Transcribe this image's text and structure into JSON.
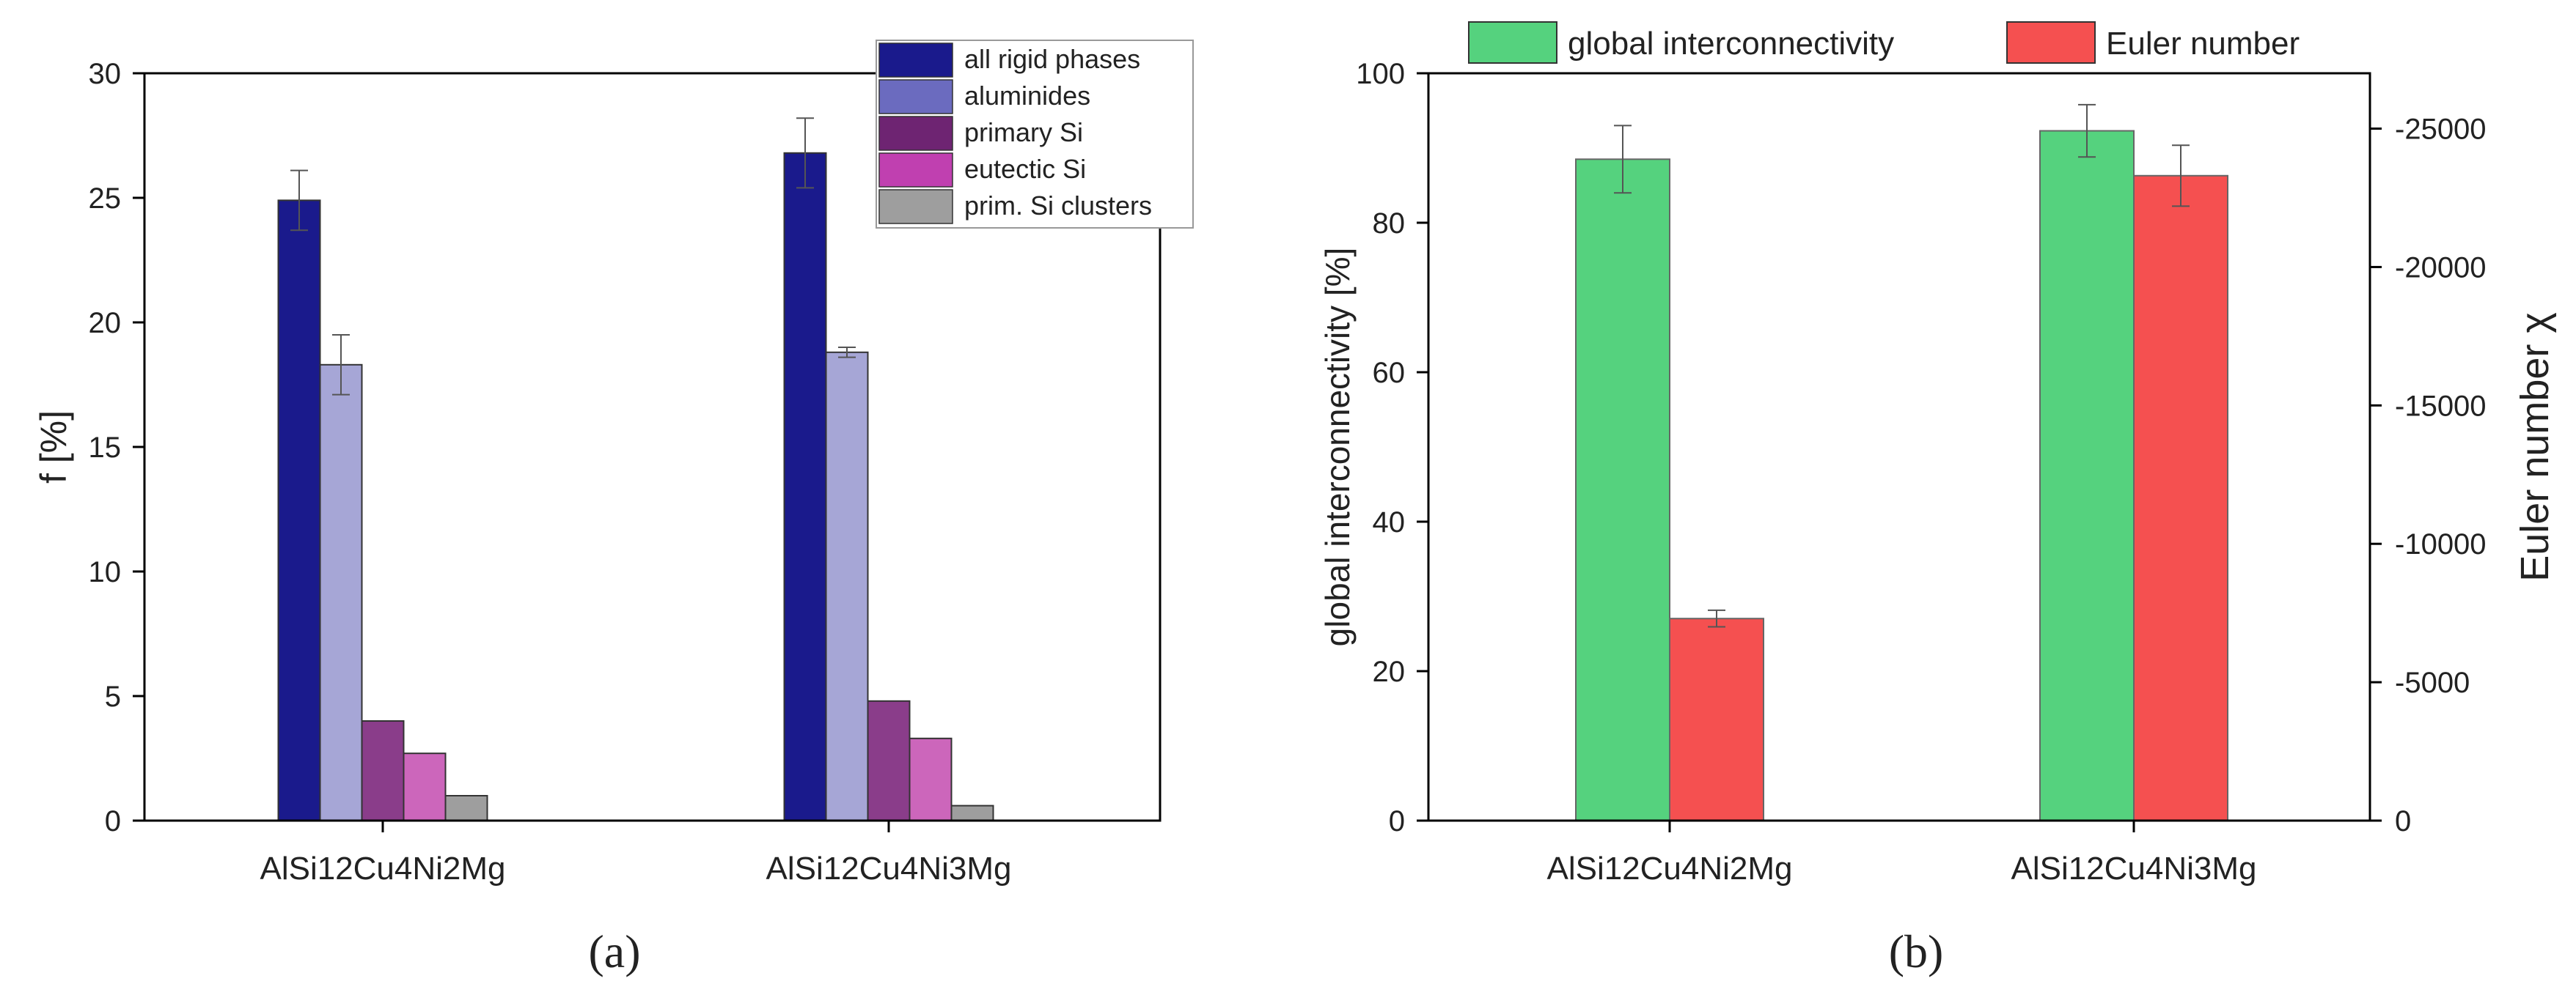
{
  "chart_data": [
    {
      "type": "bar",
      "panel_label": "(a)",
      "ylabel": "f [%]",
      "xlabel": "",
      "ylim": [
        0,
        30
      ],
      "yticks": [
        "0",
        "5",
        "10",
        "15",
        "20",
        "25",
        "30"
      ],
      "categories": [
        "AlSi12Cu4Ni2Mg",
        "AlSi12Cu4Ni3Mg"
      ],
      "legend_position": "top-right",
      "series": [
        {
          "name": "all rigid phases",
          "color": "#1a1a8c",
          "values": [
            24.9,
            26.8
          ],
          "errors": [
            1.2,
            1.4
          ]
        },
        {
          "name": "aluminides",
          "color": "#a6a6d6",
          "legend_color": "#6b6bbf",
          "values": [
            18.3,
            18.8
          ],
          "errors": [
            1.2,
            0.2
          ]
        },
        {
          "name": "primary Si",
          "color": "#8a3d8a",
          "legend_color": "#6e2472",
          "values": [
            4.0,
            4.8
          ],
          "errors": [
            0,
            0
          ]
        },
        {
          "name": "eutectic Si",
          "color": "#cc66bb",
          "legend_color": "#c040b0",
          "values": [
            2.7,
            3.3
          ],
          "errors": [
            0,
            0
          ]
        },
        {
          "name": "prim. Si clusters",
          "color": "#9e9e9e",
          "values": [
            1.0,
            0.6
          ],
          "errors": [
            0,
            0
          ]
        }
      ]
    },
    {
      "type": "bar",
      "panel_label": "(b)",
      "ylabel": "global interconnectivity [%]",
      "y2label": "Euler number χ",
      "xlabel": "",
      "ylim": [
        0,
        100
      ],
      "y2lim": [
        0,
        -27000
      ],
      "yticks": [
        "0",
        "20",
        "40",
        "60",
        "80",
        "100"
      ],
      "y2ticks": [
        "0",
        "-5000",
        "-10000",
        "-15000",
        "-20000",
        "-25000"
      ],
      "categories": [
        "AlSi12Cu4Ni2Mg",
        "AlSi12Cu4Ni3Mg"
      ],
      "legend_position": "top",
      "series": [
        {
          "name": "global interconnectivity",
          "color": "#55d27e",
          "axis": "left",
          "values": [
            88.5,
            92.3
          ],
          "errors": [
            4.5,
            3.5
          ]
        },
        {
          "name": "Euler number",
          "color": "#f55050",
          "axis": "right",
          "values": [
            -7300,
            -23300
          ],
          "errors": [
            300,
            1100
          ]
        }
      ]
    }
  ]
}
